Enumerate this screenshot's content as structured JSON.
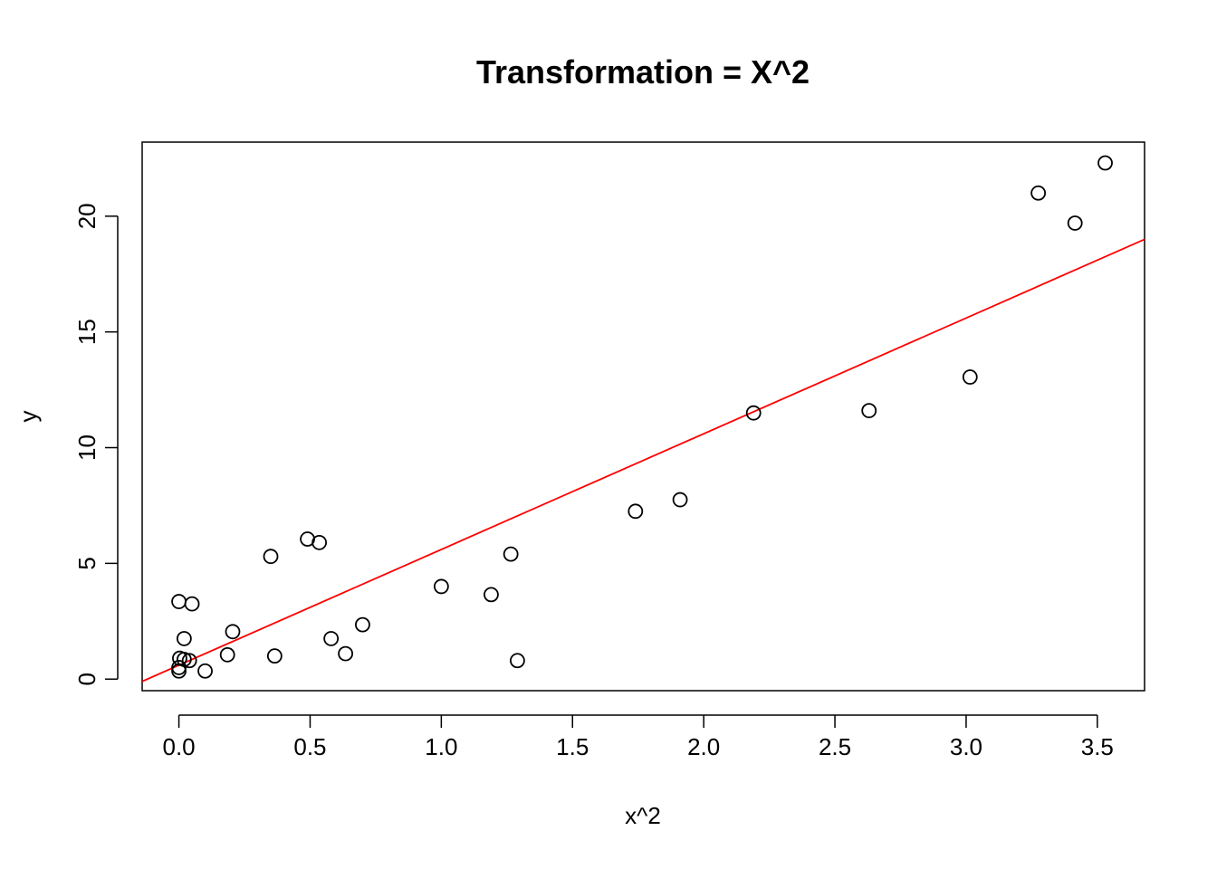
{
  "chart_data": {
    "type": "scatter",
    "title": "Transformation = X^2",
    "xlabel": "x^2",
    "ylabel": "y",
    "xlim": [
      -0.14,
      3.68
    ],
    "ylim": [
      -0.5,
      23.2
    ],
    "x_ticks": [
      0.0,
      0.5,
      1.0,
      1.5,
      2.0,
      2.5,
      3.0,
      3.5
    ],
    "x_tick_labels": [
      "0.0",
      "0.5",
      "1.0",
      "1.5",
      "2.0",
      "2.5",
      "3.0",
      "3.5"
    ],
    "y_ticks": [
      0,
      5,
      10,
      15,
      20
    ],
    "y_tick_labels": [
      "0",
      "5",
      "10",
      "15",
      "20"
    ],
    "grid": false,
    "legend": "none",
    "colors": {
      "points": "#000000",
      "fit_line": "#ff0000"
    },
    "points": [
      {
        "x": 0.0,
        "y": 3.35
      },
      {
        "x": 0.0,
        "y": 0.5
      },
      {
        "x": 0.0,
        "y": 0.35
      },
      {
        "x": 0.003,
        "y": 0.9
      },
      {
        "x": 0.02,
        "y": 1.75
      },
      {
        "x": 0.02,
        "y": 0.85
      },
      {
        "x": 0.04,
        "y": 0.8
      },
      {
        "x": 0.05,
        "y": 3.25
      },
      {
        "x": 0.1,
        "y": 0.35
      },
      {
        "x": 0.185,
        "y": 1.05
      },
      {
        "x": 0.205,
        "y": 2.05
      },
      {
        "x": 0.35,
        "y": 5.3
      },
      {
        "x": 0.365,
        "y": 1.0
      },
      {
        "x": 0.49,
        "y": 6.05
      },
      {
        "x": 0.535,
        "y": 5.9
      },
      {
        "x": 0.58,
        "y": 1.75
      },
      {
        "x": 0.635,
        "y": 1.1
      },
      {
        "x": 0.7,
        "y": 2.35
      },
      {
        "x": 1.0,
        "y": 4.0
      },
      {
        "x": 1.19,
        "y": 3.65
      },
      {
        "x": 1.265,
        "y": 5.4
      },
      {
        "x": 1.29,
        "y": 0.8
      },
      {
        "x": 1.74,
        "y": 7.25
      },
      {
        "x": 1.91,
        "y": 7.75
      },
      {
        "x": 2.19,
        "y": 11.5
      },
      {
        "x": 2.63,
        "y": 11.6
      },
      {
        "x": 3.015,
        "y": 13.05
      },
      {
        "x": 3.275,
        "y": 21.0
      },
      {
        "x": 3.415,
        "y": 19.7
      },
      {
        "x": 3.53,
        "y": 22.3
      }
    ],
    "fit_line": {
      "intercept": 0.6,
      "slope": 5.0
    }
  }
}
